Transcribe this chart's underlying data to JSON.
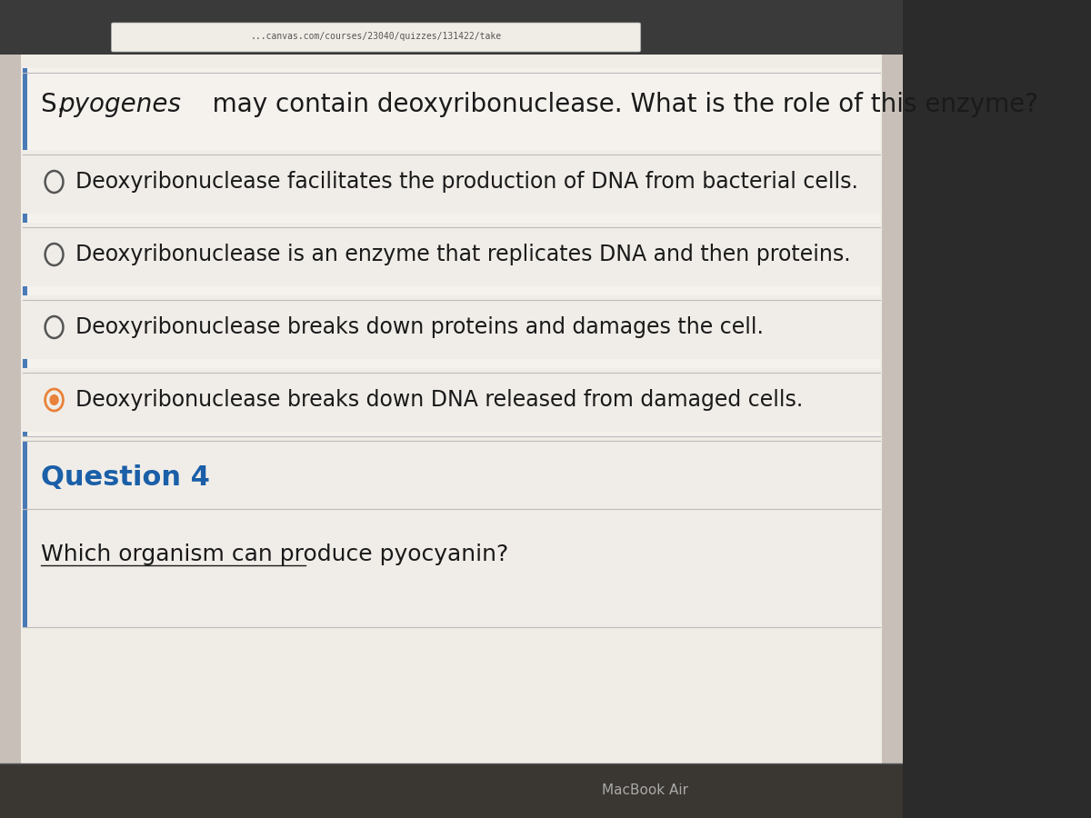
{
  "bg_top": "#2b2b2b",
  "bg_main": "#d8d0c8",
  "bg_content": "#e8e2da",
  "url_text": "...canvas.com/courses/23040/quizzes/131422/take",
  "url_color": "#555555",
  "question_text": "S. pyogenes may contain deoxyribonuclease. What is the role of this enzyme?",
  "question_italic_part": "pyogenes",
  "options": [
    "Deoxyribonuclease facilitates the production of DNA from bacterial cells.",
    "Deoxyribonuclease is an enzyme that replicates DNA and then proteins.",
    "Deoxyribonuclease breaks down proteins and damages the cell.",
    "Deoxyribonuclease breaks down DNA released from damaged cells."
  ],
  "selected_option": 3,
  "question4_label": "Question 4",
  "question4_text": "Which organism can produce pyocyanin?",
  "macbook_text": "MacBook Air",
  "text_color": "#1a1a1a",
  "circle_color": "#555555",
  "selected_circle_color": "#e8823a",
  "divider_color": "#bbbbbb",
  "left_bar_color": "#4a7ab5",
  "q4_label_color": "#1a5fa8",
  "content_bg": "#f0ece6",
  "shadow_color": "#999999"
}
